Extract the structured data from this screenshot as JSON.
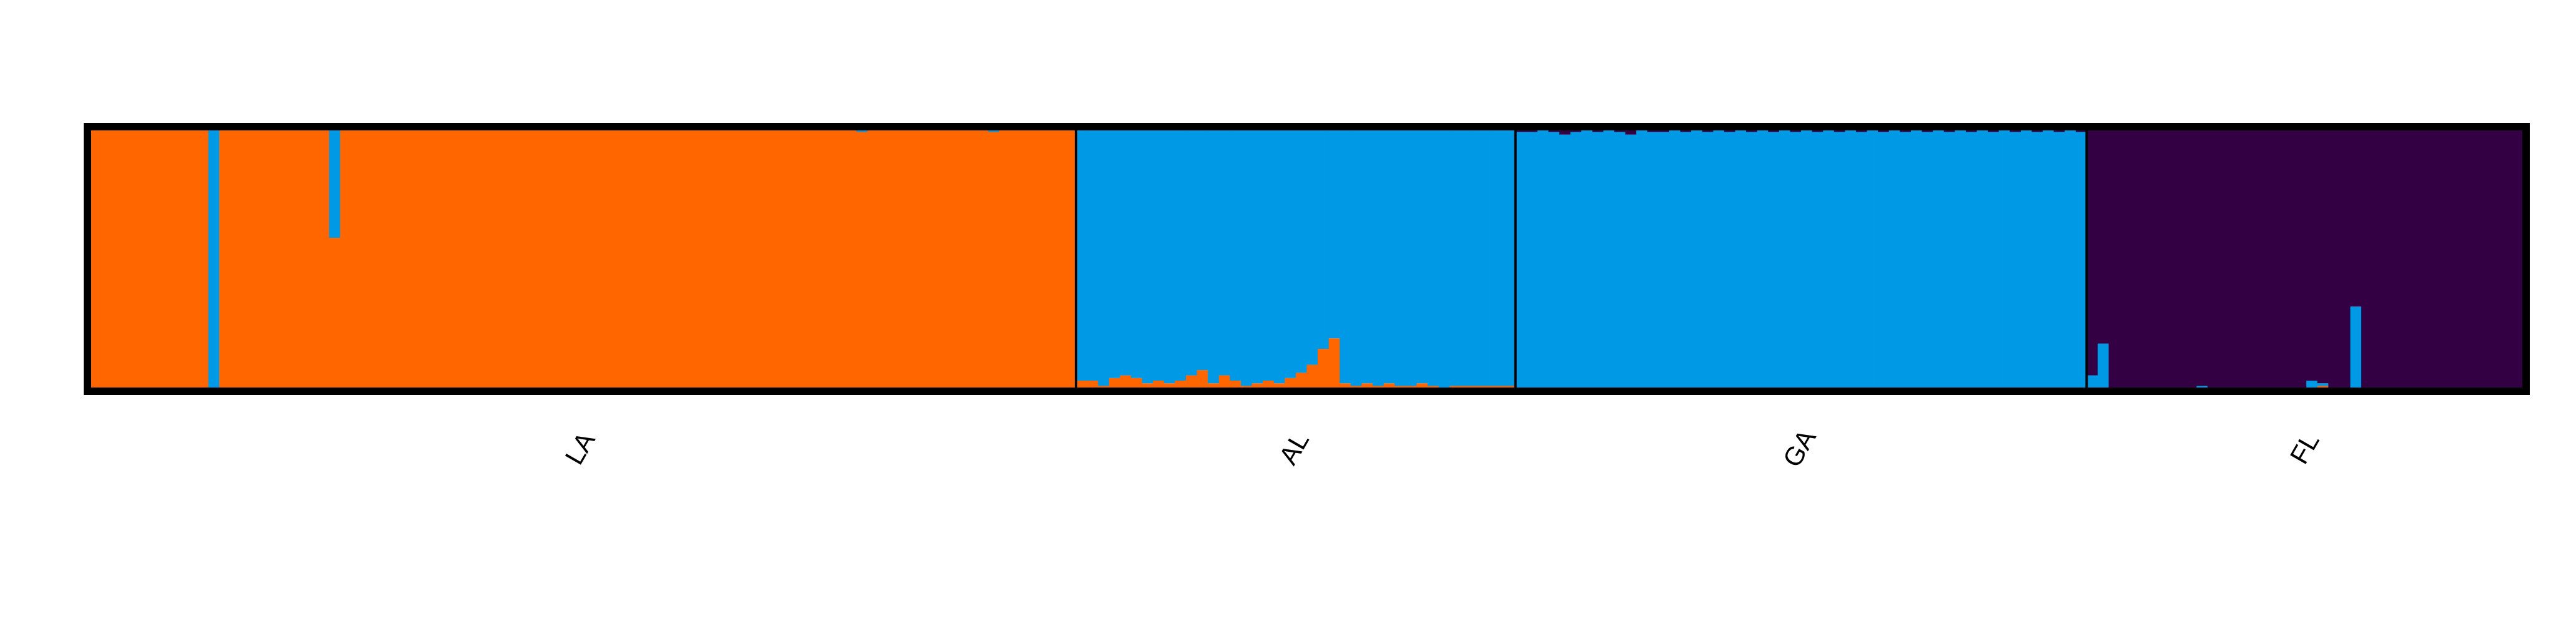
{
  "chart_data": {
    "type": "bar",
    "stacked": true,
    "normalized": true,
    "ylim": [
      0,
      1
    ],
    "grid": false,
    "title": "",
    "xlabel": "",
    "ylabel": "",
    "colors": [
      "#ff6600",
      "#0099e6",
      "#330044"
    ],
    "groups": [
      {
        "label": "LA",
        "values": [
          [
            1,
            0,
            0
          ],
          [
            1,
            0,
            0
          ],
          [
            1,
            0,
            0
          ],
          [
            1,
            0,
            0
          ],
          [
            1,
            0,
            0
          ],
          [
            1,
            0,
            0
          ],
          [
            1,
            0,
            0
          ],
          [
            1,
            0,
            0
          ],
          [
            1,
            0,
            0
          ],
          [
            1,
            0,
            0
          ],
          [
            1,
            0,
            0
          ],
          [
            0.01,
            0.99,
            0
          ],
          [
            1,
            0,
            0
          ],
          [
            1,
            0,
            0
          ],
          [
            1,
            0,
            0
          ],
          [
            1,
            0,
            0
          ],
          [
            1,
            0,
            0
          ],
          [
            1,
            0,
            0
          ],
          [
            1,
            0,
            0
          ],
          [
            1,
            0,
            0
          ],
          [
            1,
            0,
            0
          ],
          [
            1,
            0,
            0
          ],
          [
            0.58,
            0.42,
            0
          ],
          [
            1,
            0,
            0
          ],
          [
            1,
            0,
            0
          ],
          [
            1,
            0,
            0
          ],
          [
            1,
            0,
            0
          ],
          [
            1,
            0,
            0
          ],
          [
            1,
            0,
            0
          ],
          [
            1,
            0,
            0
          ],
          [
            1,
            0,
            0
          ],
          [
            1,
            0,
            0
          ],
          [
            1,
            0,
            0
          ],
          [
            1,
            0,
            0
          ],
          [
            1,
            0,
            0
          ],
          [
            1,
            0,
            0
          ],
          [
            1,
            0,
            0
          ],
          [
            1,
            0,
            0
          ],
          [
            1,
            0,
            0
          ],
          [
            1,
            0,
            0
          ],
          [
            1,
            0,
            0
          ],
          [
            1,
            0,
            0
          ],
          [
            1,
            0,
            0
          ],
          [
            1,
            0,
            0
          ],
          [
            1,
            0,
            0
          ],
          [
            1,
            0,
            0
          ],
          [
            1,
            0,
            0
          ],
          [
            1,
            0,
            0
          ],
          [
            1,
            0,
            0
          ],
          [
            1,
            0,
            0
          ],
          [
            1,
            0,
            0
          ],
          [
            1,
            0,
            0
          ],
          [
            1,
            0,
            0
          ],
          [
            1,
            0,
            0
          ],
          [
            1,
            0,
            0
          ],
          [
            1,
            0,
            0
          ],
          [
            1,
            0,
            0
          ],
          [
            1,
            0,
            0
          ],
          [
            1,
            0,
            0
          ],
          [
            1,
            0,
            0
          ],
          [
            1,
            0,
            0
          ],
          [
            1,
            0,
            0
          ],
          [
            1,
            0,
            0
          ],
          [
            1,
            0,
            0
          ],
          [
            1,
            0,
            0
          ],
          [
            1,
            0,
            0
          ],
          [
            1,
            0,
            0
          ],
          [
            1,
            0,
            0
          ],
          [
            1,
            0,
            0
          ],
          [
            1,
            0,
            0
          ],
          [
            0.98,
            0.02,
            0
          ],
          [
            1,
            0,
            0
          ],
          [
            1,
            0,
            0
          ],
          [
            1,
            0,
            0
          ],
          [
            1,
            0,
            0
          ],
          [
            1,
            0,
            0
          ],
          [
            1,
            0,
            0
          ],
          [
            1,
            0,
            0
          ],
          [
            1,
            0,
            0
          ],
          [
            1,
            0,
            0
          ],
          [
            1,
            0,
            0
          ],
          [
            1,
            0,
            0
          ],
          [
            0.98,
            0.02,
            0
          ],
          [
            1,
            0,
            0
          ],
          [
            1,
            0,
            0
          ],
          [
            1,
            0,
            0
          ],
          [
            1,
            0,
            0
          ],
          [
            1,
            0,
            0
          ],
          [
            1,
            0,
            0
          ],
          [
            1,
            0,
            0
          ]
        ]
      },
      {
        "label": "AL",
        "values": [
          [
            0.04,
            0.96,
            0
          ],
          [
            0.04,
            0.96,
            0
          ],
          [
            0.02,
            0.98,
            0
          ],
          [
            0.05,
            0.95,
            0
          ],
          [
            0.06,
            0.94,
            0
          ],
          [
            0.05,
            0.95,
            0
          ],
          [
            0.03,
            0.97,
            0
          ],
          [
            0.04,
            0.96,
            0
          ],
          [
            0.03,
            0.97,
            0
          ],
          [
            0.04,
            0.96,
            0
          ],
          [
            0.06,
            0.94,
            0
          ],
          [
            0.08,
            0.92,
            0
          ],
          [
            0.03,
            0.97,
            0
          ],
          [
            0.06,
            0.94,
            0
          ],
          [
            0.04,
            0.96,
            0
          ],
          [
            0.02,
            0.98,
            0
          ],
          [
            0.03,
            0.97,
            0
          ],
          [
            0.04,
            0.96,
            0
          ],
          [
            0.03,
            0.97,
            0
          ],
          [
            0.05,
            0.95,
            0
          ],
          [
            0.07,
            0.93,
            0
          ],
          [
            0.1,
            0.9,
            0
          ],
          [
            0.16,
            0.84,
            0
          ],
          [
            0.2,
            0.8,
            0
          ],
          [
            0.03,
            0.97,
            0
          ],
          [
            0.02,
            0.98,
            0
          ],
          [
            0.03,
            0.97,
            0
          ],
          [
            0.02,
            0.98,
            0
          ],
          [
            0.03,
            0.97,
            0
          ],
          [
            0.02,
            0.98,
            0
          ],
          [
            0.02,
            0.98,
            0
          ],
          [
            0.03,
            0.97,
            0
          ],
          [
            0.02,
            0.98,
            0
          ],
          [
            0.01,
            0.99,
            0
          ],
          [
            0.02,
            0.98,
            0
          ],
          [
            0.02,
            0.98,
            0
          ],
          [
            0.02,
            0.98,
            0
          ],
          [
            0.02,
            0.98,
            0
          ],
          [
            0.02,
            0.98,
            0
          ],
          [
            0.02,
            0.98,
            0
          ]
        ]
      },
      {
        "label": "GA",
        "values": [
          [
            0.01,
            0.97,
            0.02
          ],
          [
            0.01,
            0.97,
            0.02
          ],
          [
            0.01,
            0.98,
            0.01
          ],
          [
            0.01,
            0.97,
            0.02
          ],
          [
            0.01,
            0.96,
            0.03
          ],
          [
            0.01,
            0.97,
            0.02
          ],
          [
            0.01,
            0.98,
            0.01
          ],
          [
            0.01,
            0.97,
            0.02
          ],
          [
            0.01,
            0.98,
            0.01
          ],
          [
            0.01,
            0.97,
            0.02
          ],
          [
            0.01,
            0.96,
            0.03
          ],
          [
            0.01,
            0.98,
            0.01
          ],
          [
            0.01,
            0.97,
            0.02
          ],
          [
            0.01,
            0.97,
            0.02
          ],
          [
            0.01,
            0.98,
            0.01
          ],
          [
            0.01,
            0.97,
            0.02
          ],
          [
            0.01,
            0.98,
            0.01
          ],
          [
            0.01,
            0.97,
            0.02
          ],
          [
            0.01,
            0.98,
            0.01
          ],
          [
            0.01,
            0.97,
            0.02
          ],
          [
            0.01,
            0.98,
            0.01
          ],
          [
            0.01,
            0.97,
            0.02
          ],
          [
            0.01,
            0.98,
            0.01
          ],
          [
            0.01,
            0.97,
            0.02
          ],
          [
            0.01,
            0.98,
            0.01
          ],
          [
            0.01,
            0.97,
            0.02
          ],
          [
            0.01,
            0.98,
            0.01
          ],
          [
            0.01,
            0.97,
            0.02
          ],
          [
            0.01,
            0.98,
            0.01
          ],
          [
            0.01,
            0.97,
            0.02
          ],
          [
            0.01,
            0.98,
            0.01
          ],
          [
            0.01,
            0.97,
            0.02
          ],
          [
            0.01,
            0.98,
            0.01
          ],
          [
            0.01,
            0.97,
            0.02
          ],
          [
            0.01,
            0.98,
            0.01
          ],
          [
            0.01,
            0.97,
            0.02
          ],
          [
            0.01,
            0.98,
            0.01
          ],
          [
            0.01,
            0.97,
            0.02
          ],
          [
            0.01,
            0.98,
            0.01
          ],
          [
            0.01,
            0.97,
            0.02
          ],
          [
            0.01,
            0.98,
            0.01
          ],
          [
            0.01,
            0.97,
            0.02
          ],
          [
            0.01,
            0.98,
            0.01
          ],
          [
            0.01,
            0.97,
            0.02
          ],
          [
            0.01,
            0.98,
            0.01
          ],
          [
            0.01,
            0.97,
            0.02
          ],
          [
            0.01,
            0.98,
            0.01
          ],
          [
            0.01,
            0.97,
            0.02
          ],
          [
            0.01,
            0.98,
            0.01
          ],
          [
            0.01,
            0.97,
            0.02
          ],
          [
            0.01,
            0.98,
            0.01
          ],
          [
            0.01,
            0.97,
            0.02
          ]
        ]
      },
      {
        "label": "FL",
        "values": [
          [
            0.01,
            0.05,
            0.94
          ],
          [
            0.01,
            0.17,
            0.82
          ],
          [
            0,
            0.01,
            0.99
          ],
          [
            0,
            0,
            1
          ],
          [
            0,
            0,
            1
          ],
          [
            0,
            0,
            1
          ],
          [
            0,
            0,
            1
          ],
          [
            0,
            0,
            1
          ],
          [
            0,
            0,
            1
          ],
          [
            0,
            0,
            1
          ],
          [
            0.01,
            0.01,
            0.98
          ],
          [
            0,
            0,
            1
          ],
          [
            0,
            0,
            1
          ],
          [
            0,
            0,
            1
          ],
          [
            0,
            0,
            1
          ],
          [
            0,
            0.01,
            0.99
          ],
          [
            0,
            0,
            1
          ],
          [
            0,
            0,
            1
          ],
          [
            0,
            0,
            1
          ],
          [
            0,
            0,
            1
          ],
          [
            0.01,
            0.03,
            0.96
          ],
          [
            0.02,
            0.01,
            0.97
          ],
          [
            0,
            0,
            1
          ],
          [
            0,
            0,
            1
          ],
          [
            0,
            0.32,
            0.68
          ],
          [
            0,
            0,
            1
          ],
          [
            0.01,
            0,
            0.99
          ],
          [
            0,
            0,
            1
          ],
          [
            0,
            0,
            1
          ],
          [
            0,
            0,
            1
          ],
          [
            0,
            0,
            1
          ],
          [
            0,
            0,
            1
          ],
          [
            0.01,
            0,
            0.99
          ],
          [
            0,
            0,
            1
          ],
          [
            0,
            0,
            1
          ],
          [
            0,
            0,
            1
          ],
          [
            0,
            0,
            1
          ],
          [
            0,
            0,
            1
          ],
          [
            0,
            0,
            1
          ],
          [
            0,
            0,
            1
          ]
        ]
      }
    ]
  }
}
